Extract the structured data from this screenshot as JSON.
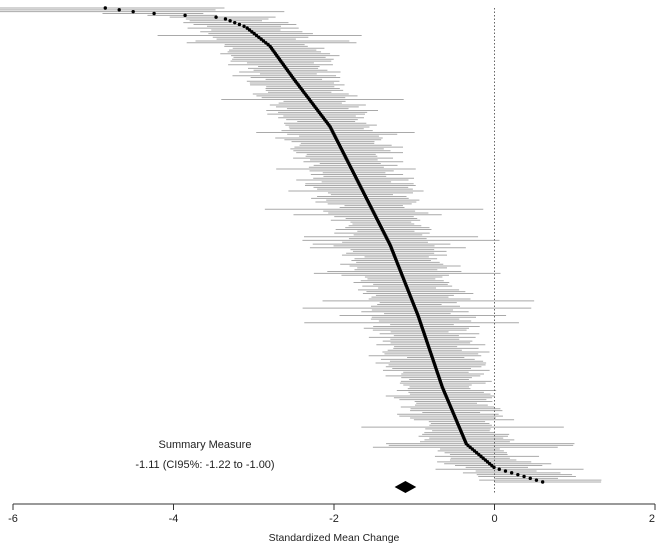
{
  "chart_data": {
    "type": "forest",
    "title": "",
    "xlabel": "Standardized Mean Change",
    "ylabel": "",
    "xlim": [
      -6,
      2
    ],
    "x_ticks": [
      -6,
      -4,
      -2,
      0,
      2
    ],
    "x_tick_labels": [
      "-6",
      "-4",
      "-2",
      "0",
      "2"
    ],
    "reference_line": 0,
    "grid": false,
    "n_studies": 260,
    "studies": {
      "note_order": "sorted from most negative effect (top) to most positive (bottom)",
      "effect_profile": [
        {
          "rank_fraction": 0.0,
          "effect": -4.85
        },
        {
          "rank_fraction": 0.01,
          "effect": -4.4
        },
        {
          "rank_fraction": 0.02,
          "effect": -3.4
        },
        {
          "rank_fraction": 0.04,
          "effect": -3.1
        },
        {
          "rank_fraction": 0.08,
          "effect": -2.8
        },
        {
          "rank_fraction": 0.15,
          "effect": -2.5
        },
        {
          "rank_fraction": 0.25,
          "effect": -2.05
        },
        {
          "rank_fraction": 0.35,
          "effect": -1.75
        },
        {
          "rank_fraction": 0.5,
          "effect": -1.3
        },
        {
          "rank_fraction": 0.65,
          "effect": -0.95
        },
        {
          "rank_fraction": 0.8,
          "effect": -0.65
        },
        {
          "rank_fraction": 0.92,
          "effect": -0.35
        },
        {
          "rank_fraction": 0.97,
          "effect": 0.0
        },
        {
          "rank_fraction": 1.0,
          "effect": 0.6
        }
      ]
    },
    "summary": {
      "label": "Summary Measure",
      "text": "-1.11 (CI95%: -1.22 to -1.00)",
      "estimate": -1.11,
      "ci_low": -1.22,
      "ci_high": -1.0
    },
    "colors": {
      "ci_line": "#a9a9a9",
      "point": "#000000",
      "axis": "#333333",
      "reference": "#666666",
      "diamond": "#000000"
    }
  }
}
